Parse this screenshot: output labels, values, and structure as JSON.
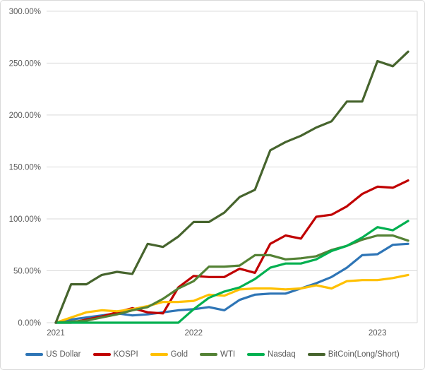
{
  "chart_data": {
    "type": "line",
    "title": "",
    "xlabel": "",
    "ylabel": "",
    "unit": "percent",
    "ylim": [
      0,
      300
    ],
    "grid": true,
    "legend_position": "bottom",
    "y_ticks": [
      "0.00%",
      "50.00%",
      "100.00%",
      "150.00%",
      "200.00%",
      "250.00%",
      "300.00%"
    ],
    "x_axis_ticks": [
      {
        "label": "2021",
        "index": 0
      },
      {
        "label": "2022",
        "index": 9
      },
      {
        "label": "2023",
        "index": 21
      }
    ],
    "x_point_count": 24,
    "series": [
      {
        "name": "US Dollar",
        "color": "#2E75B6",
        "values": [
          0,
          3,
          5,
          7,
          9,
          7,
          8,
          10,
          12,
          13,
          15,
          12,
          22,
          27,
          28,
          28,
          33,
          38,
          44,
          53,
          65,
          66,
          75,
          76
        ]
      },
      {
        "name": "KOSPI",
        "color": "#C00000",
        "values": [
          0,
          0,
          3,
          6,
          10,
          14,
          10,
          9,
          34,
          45,
          44,
          44,
          52,
          48,
          76,
          84,
          81,
          102,
          104,
          112,
          124,
          131,
          130,
          137
        ]
      },
      {
        "name": "Gold",
        "color": "#FFC000",
        "values": [
          0,
          5,
          10,
          12,
          11,
          13,
          16,
          20,
          20,
          21,
          27,
          26,
          32,
          33,
          33,
          32,
          33,
          36,
          33,
          40,
          41,
          41,
          43,
          46
        ]
      },
      {
        "name": "WTI",
        "color": "#548235",
        "values": [
          0,
          1,
          2,
          5,
          8,
          12,
          15,
          23,
          33,
          40,
          54,
          54,
          55,
          65,
          65,
          61,
          62,
          64,
          70,
          74,
          80,
          84,
          84,
          79
        ]
      },
      {
        "name": "Nasdaq",
        "color": "#00B050",
        "values": [
          0,
          0,
          0,
          0,
          0,
          0,
          0,
          0,
          0,
          13,
          24,
          30,
          34,
          42,
          53,
          57,
          57,
          61,
          69,
          74,
          82,
          92,
          89,
          98
        ]
      },
      {
        "name": "BitCoin(Long/Short)",
        "color": "#46642D",
        "values": [
          0,
          37,
          37,
          46,
          49,
          47,
          76,
          73,
          83,
          97,
          97,
          106,
          121,
          128,
          166,
          174,
          180,
          188,
          194,
          213,
          213,
          252,
          247,
          261
        ]
      }
    ],
    "colors": {
      "gridline": "#D9D9D9",
      "plot_border": "#D9D9D9",
      "axis_text": "#595959",
      "background": "#FFFFFF"
    }
  }
}
